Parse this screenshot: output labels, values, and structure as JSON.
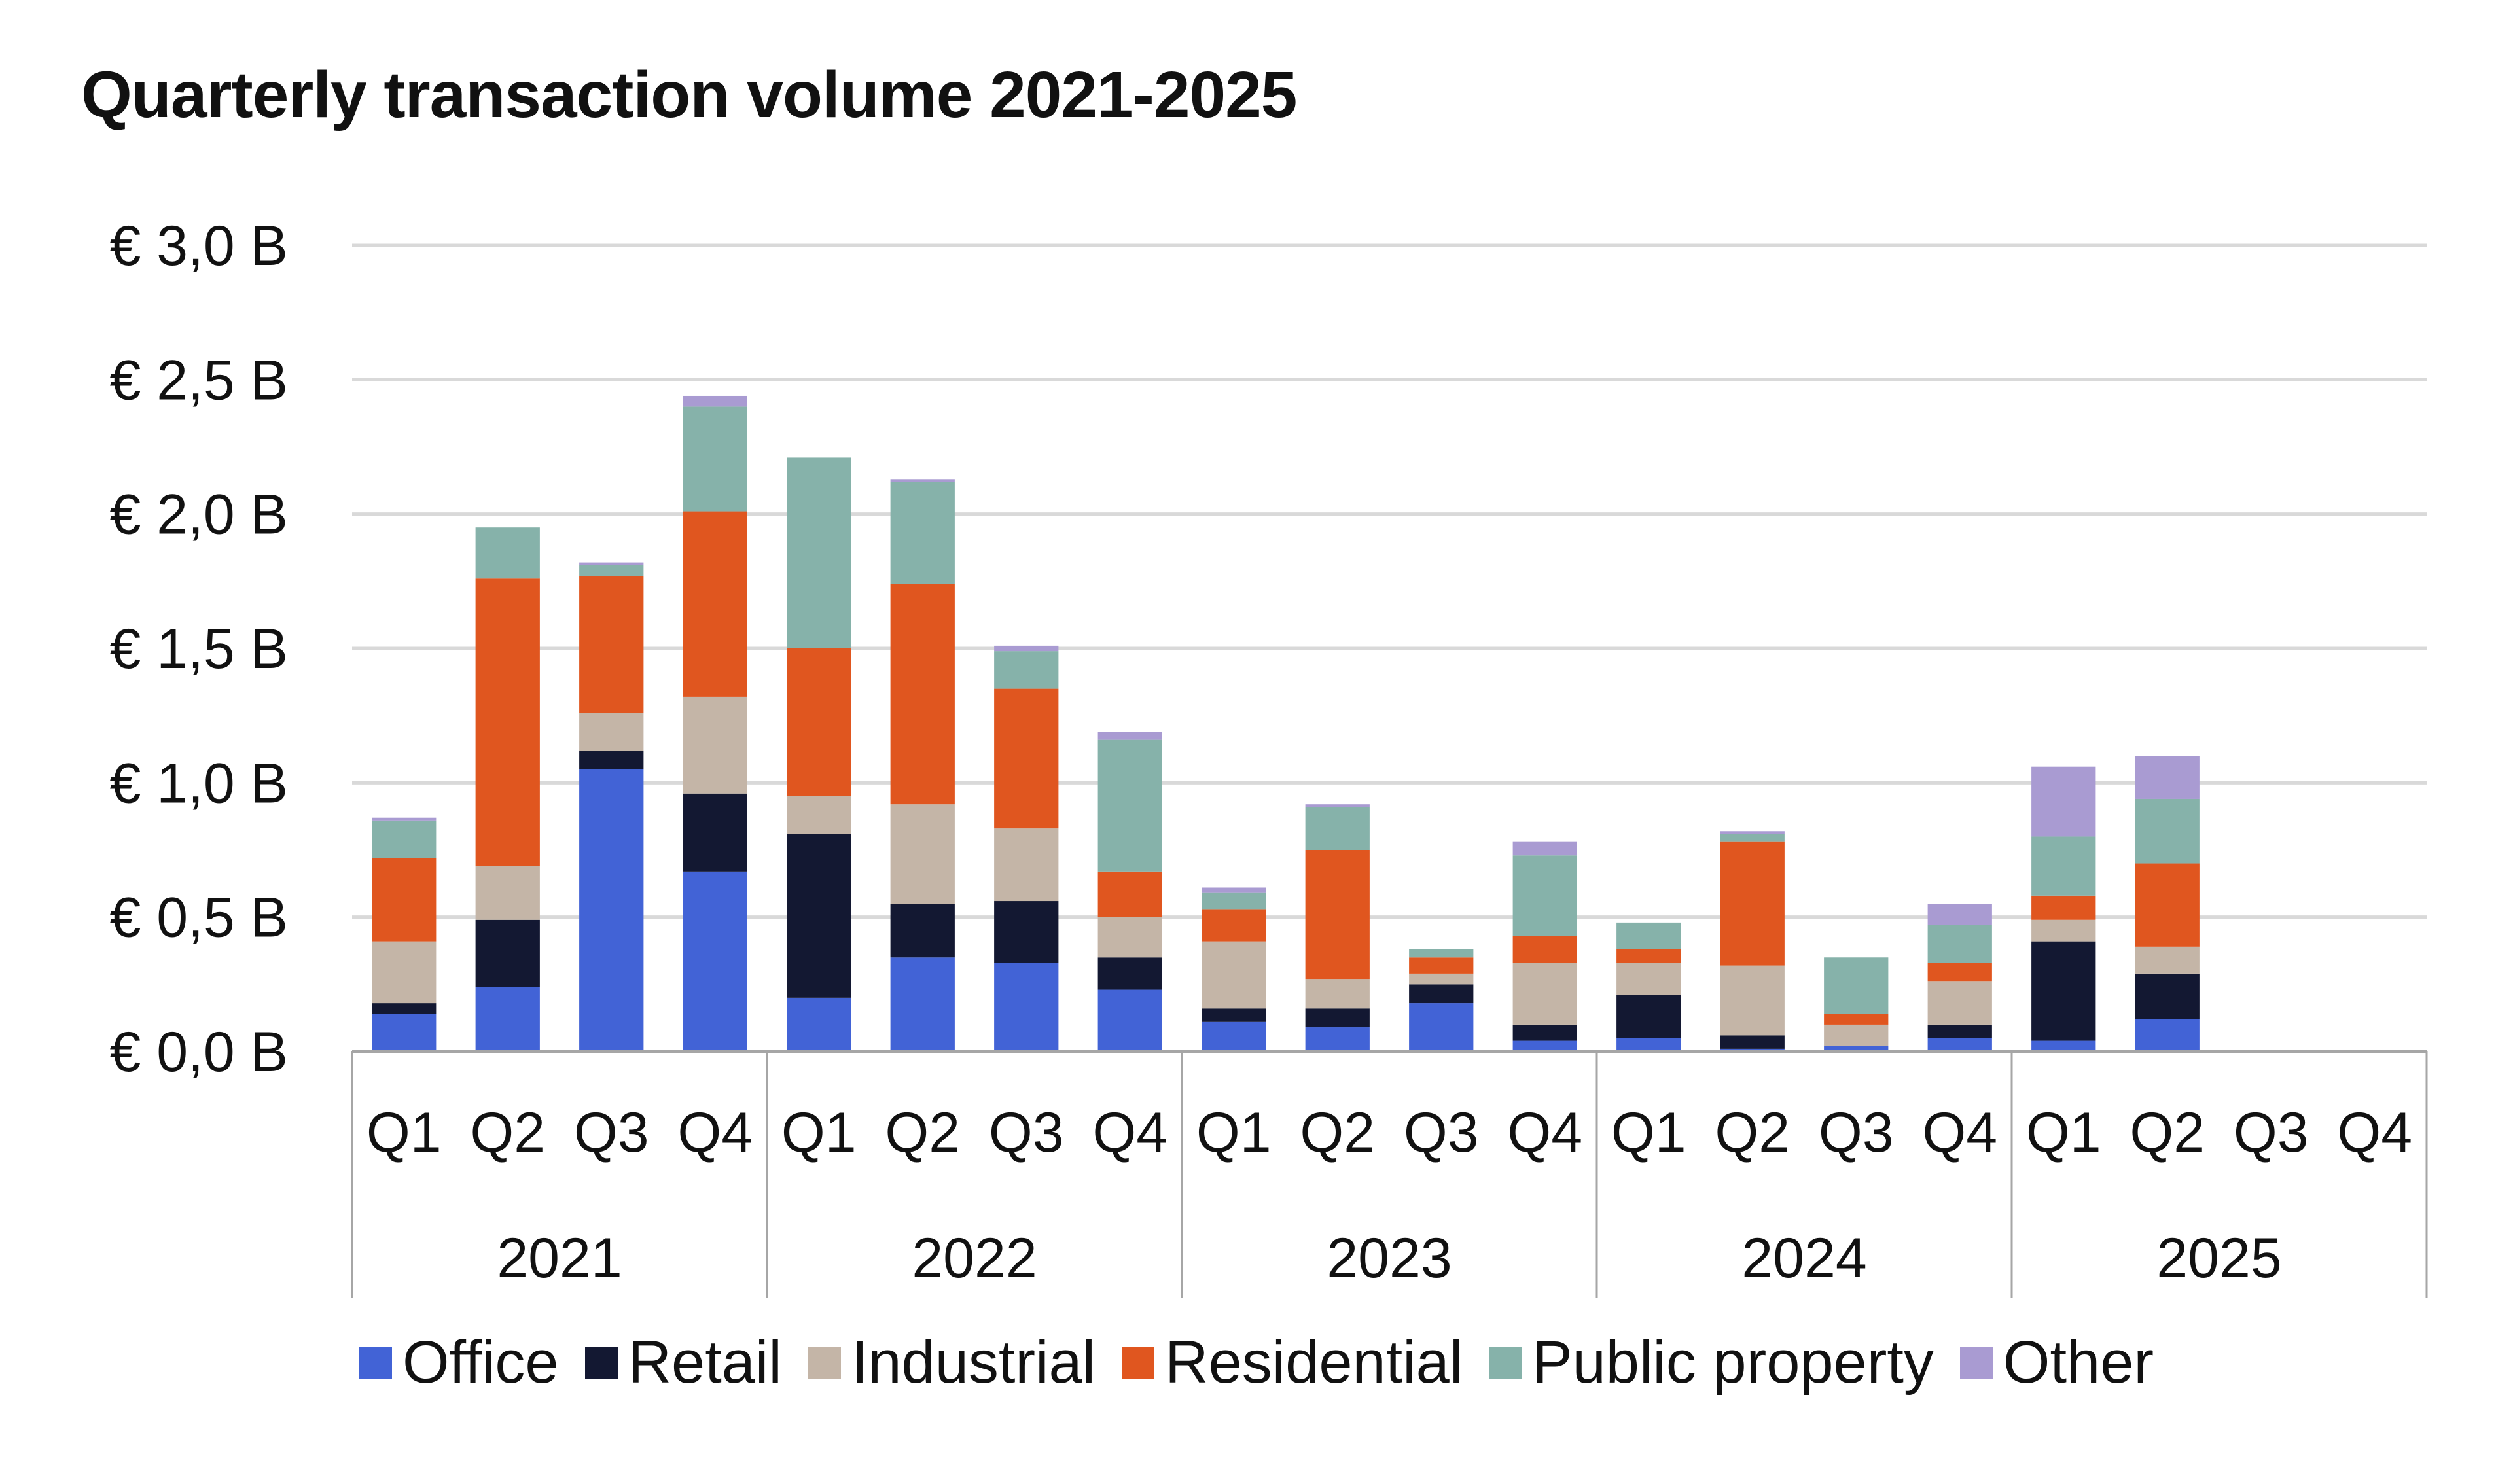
{
  "chart_data": {
    "type": "bar",
    "stacked": true,
    "title": "Quarterly transaction volume 2021-2025",
    "xlabel": "",
    "ylabel": "",
    "ylim": [
      0,
      3.0
    ],
    "yticks": [
      0,
      0.5,
      1.0,
      1.5,
      2.0,
      2.5,
      3.0
    ],
    "ytick_labels": [
      "€ 0,0 B",
      "€ 0,5 B",
      "€ 1,0 B",
      "€ 1,5 B",
      "€ 2,0 B",
      "€ 2,5 B",
      "€ 3,0 B"
    ],
    "grid": true,
    "legend_position": "bottom",
    "groups": [
      "2021",
      "2022",
      "2023",
      "2024",
      "2025"
    ],
    "categories": [
      "Q1",
      "Q2",
      "Q3",
      "Q4",
      "Q1",
      "Q2",
      "Q3",
      "Q4",
      "Q1",
      "Q2",
      "Q3",
      "Q4",
      "Q1",
      "Q2",
      "Q3",
      "Q4",
      "Q1",
      "Q2",
      "Q3",
      "Q4"
    ],
    "series": [
      {
        "name": "Office",
        "color": "#4263d6",
        "values": [
          0.14,
          0.24,
          1.05,
          0.67,
          0.2,
          0.35,
          0.33,
          0.23,
          0.11,
          0.09,
          0.18,
          0.04,
          0.05,
          0.01,
          0.02,
          0.05,
          0.04,
          0.12,
          null,
          null
        ]
      },
      {
        "name": "Retail",
        "color": "#131832",
        "values": [
          0.04,
          0.25,
          0.07,
          0.29,
          0.61,
          0.2,
          0.23,
          0.12,
          0.05,
          0.07,
          0.07,
          0.06,
          0.16,
          0.05,
          0.0,
          0.05,
          0.37,
          0.17,
          null,
          null
        ]
      },
      {
        "name": "Industrial",
        "color": "#c4b5a7",
        "values": [
          0.23,
          0.2,
          0.14,
          0.36,
          0.14,
          0.37,
          0.27,
          0.15,
          0.25,
          0.11,
          0.04,
          0.23,
          0.12,
          0.26,
          0.08,
          0.16,
          0.08,
          0.1,
          null,
          null
        ]
      },
      {
        "name": "Residential",
        "color": "#e0561f",
        "values": [
          0.31,
          1.07,
          0.51,
          0.69,
          0.55,
          0.82,
          0.52,
          0.17,
          0.12,
          0.48,
          0.06,
          0.1,
          0.05,
          0.46,
          0.04,
          0.07,
          0.09,
          0.31,
          null,
          null
        ]
      },
      {
        "name": "Public property",
        "color": "#86b2aa",
        "values": [
          0.14,
          0.19,
          0.04,
          0.39,
          0.71,
          0.38,
          0.14,
          0.49,
          0.06,
          0.16,
          0.03,
          0.3,
          0.1,
          0.03,
          0.21,
          0.14,
          0.22,
          0.24,
          null,
          null
        ]
      },
      {
        "name": "Other",
        "color": "#a99bd2",
        "values": [
          0.01,
          0.0,
          0.01,
          0.04,
          0.0,
          0.01,
          0.02,
          0.03,
          0.02,
          0.01,
          0.0,
          0.05,
          0.0,
          0.01,
          0.0,
          0.08,
          0.26,
          0.16,
          null,
          null
        ]
      }
    ]
  }
}
